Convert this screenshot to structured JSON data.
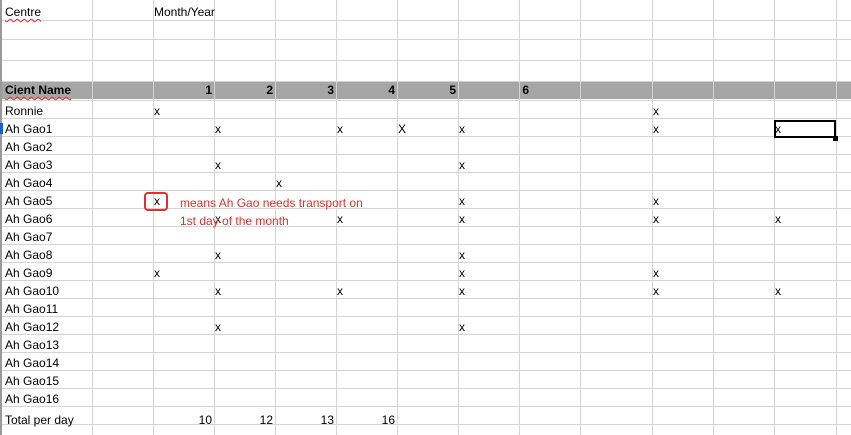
{
  "sheet": {
    "top_labels": {
      "centre": "Centre",
      "month_year": "Month/Year"
    },
    "header": {
      "client_name": "Cient Name",
      "days": [
        "1",
        "2",
        "3",
        "4",
        "5",
        "6"
      ]
    },
    "rows": [
      {
        "name": "Ronnie",
        "marks": [
          "x",
          "",
          "",
          "",
          "",
          "",
          "",
          "",
          "x",
          "",
          ""
        ]
      },
      {
        "name": "Ah Gao1",
        "marks": [
          "",
          "x",
          "",
          "x",
          "X",
          "x",
          "",
          "",
          "x",
          "",
          "x"
        ]
      },
      {
        "name": "Ah Gao2",
        "marks": [
          "",
          "",
          "",
          "",
          "",
          "",
          "",
          "",
          "",
          "",
          ""
        ]
      },
      {
        "name": "Ah Gao3",
        "marks": [
          "",
          "x",
          "",
          "",
          "",
          "x",
          "",
          "",
          "",
          "",
          ""
        ]
      },
      {
        "name": "Ah Gao4",
        "marks": [
          "",
          "",
          "x",
          "",
          "",
          "",
          "",
          "",
          "",
          "",
          ""
        ]
      },
      {
        "name": "Ah Gao5",
        "marks": [
          "x",
          "",
          "",
          "",
          "",
          "x",
          "",
          "",
          "x",
          "",
          ""
        ]
      },
      {
        "name": "Ah Gao6",
        "marks": [
          "",
          "x",
          "",
          "x",
          "",
          "x",
          "",
          "",
          "x",
          "",
          "x"
        ]
      },
      {
        "name": "Ah Gao7",
        "marks": [
          "",
          "",
          "",
          "",
          "",
          "",
          "",
          "",
          "",
          "",
          ""
        ]
      },
      {
        "name": "Ah Gao8",
        "marks": [
          "",
          "x",
          "",
          "",
          "",
          "x",
          "",
          "",
          "",
          "",
          ""
        ]
      },
      {
        "name": "Ah Gao9",
        "marks": [
          "x",
          "",
          "",
          "",
          "",
          "x",
          "",
          "",
          "x",
          "",
          ""
        ]
      },
      {
        "name": "Ah Gao10",
        "marks": [
          "",
          "x",
          "",
          "x",
          "",
          "x",
          "",
          "",
          "x",
          "",
          "x"
        ]
      },
      {
        "name": "Ah Gao11",
        "marks": [
          "",
          "",
          "",
          "",
          "",
          "",
          "",
          "",
          "",
          "",
          ""
        ]
      },
      {
        "name": "Ah Gao12",
        "marks": [
          "",
          "x",
          "",
          "",
          "",
          "x",
          "",
          "",
          "",
          "",
          ""
        ]
      },
      {
        "name": "Ah Gao13",
        "marks": [
          "",
          "",
          "",
          "",
          "",
          "",
          "",
          "",
          "",
          "",
          ""
        ]
      },
      {
        "name": "Ah Gao14",
        "marks": [
          "",
          "",
          "",
          "",
          "",
          "",
          "",
          "",
          "",
          "",
          ""
        ]
      },
      {
        "name": "Ah Gao15",
        "marks": [
          "",
          "",
          "",
          "",
          "",
          "",
          "",
          "",
          "",
          "",
          ""
        ]
      },
      {
        "name": "Ah Gao16",
        "marks": [
          "",
          "",
          "",
          "",
          "",
          "",
          "",
          "",
          "",
          "",
          ""
        ]
      }
    ],
    "total": {
      "label": "Total per day",
      "values": [
        "10",
        "12",
        "13",
        "16"
      ]
    },
    "annotation": {
      "line1": "means Ah Gao needs transport on",
      "line2": "1st day of the month"
    },
    "colors": {
      "annotation": "#e0302b",
      "header_band": "#a6a6a6",
      "grid": "#d4d4d4"
    }
  }
}
